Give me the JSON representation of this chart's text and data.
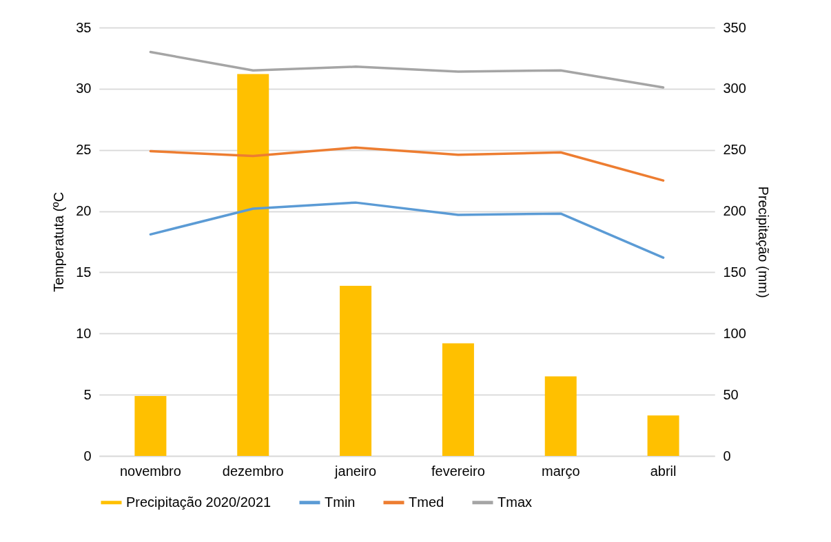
{
  "chart_data": {
    "type": "line",
    "categories": [
      "novembro",
      "dezembro",
      "janeiro",
      "fevereiro",
      "março",
      "abril"
    ],
    "series": [
      {
        "name": "Precipitação 2020/2021",
        "type": "bar",
        "axis": "y2",
        "color": "#ffc000",
        "values": [
          49,
          312,
          139,
          92,
          65,
          33
        ]
      },
      {
        "name": "Tmin",
        "color": "#5b9bd5",
        "values": [
          18.1,
          20.2,
          20.7,
          19.7,
          19.8,
          16.2
        ]
      },
      {
        "name": "Tmed",
        "color": "#ed7d31",
        "values": [
          24.9,
          24.5,
          25.2,
          24.6,
          24.8,
          22.5
        ]
      },
      {
        "name": "Tmax",
        "color": "#a5a5a5",
        "values": [
          33.0,
          31.5,
          31.8,
          31.4,
          31.5,
          30.1
        ]
      }
    ],
    "ylabel": "Temperatuta (ºC",
    "y2label": "Precipitação (mm)",
    "ylim": [
      0,
      35
    ],
    "yticks": [
      0,
      5,
      10,
      15,
      20,
      25,
      30,
      35
    ],
    "y2lim": [
      0,
      350
    ],
    "y2ticks": [
      0,
      50,
      100,
      150,
      200,
      250,
      300,
      350
    ],
    "grid": true,
    "legend": "bottom"
  }
}
